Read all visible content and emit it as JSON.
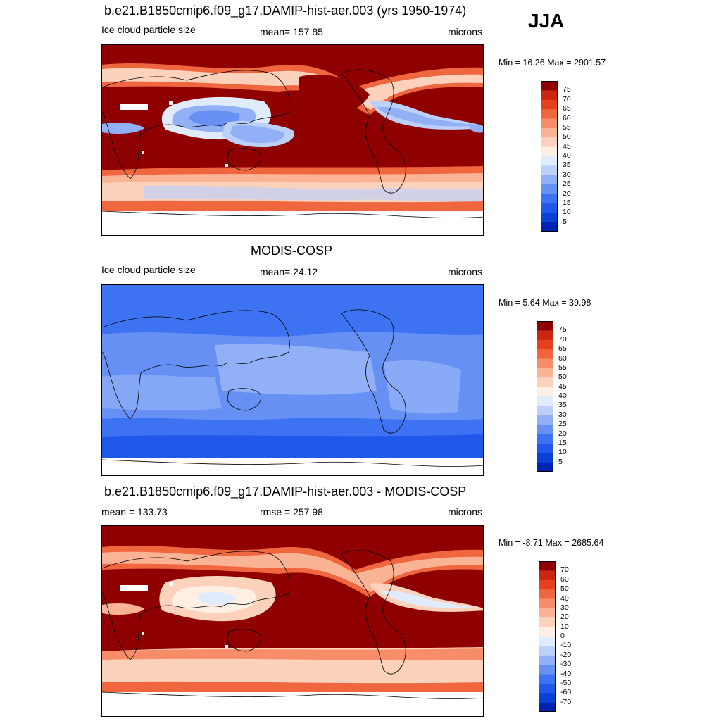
{
  "season": "JJA",
  "panels": [
    {
      "title": "b.e21.B1850cmip6.f09_g17.DAMIP-hist-aer.003 (yrs 1950-1974)",
      "left_label": "Ice cloud particle size",
      "center_label": "mean= 157.85",
      "units": "microns",
      "minmax": "Min =  16.26 Max = 2901.57",
      "colorbar": [
        "75",
        "70",
        "65",
        "60",
        "55",
        "50",
        "45",
        "40",
        "35",
        "30",
        "25",
        "20",
        "15",
        "10",
        "5"
      ]
    },
    {
      "title": "MODIS-COSP",
      "left_label": "Ice cloud particle size",
      "center_label": "mean=  24.12",
      "units": "microns",
      "minmax": "Min =   5.64 Max =  39.98",
      "colorbar": [
        "75",
        "70",
        "65",
        "60",
        "55",
        "50",
        "45",
        "40",
        "35",
        "30",
        "25",
        "20",
        "15",
        "10",
        "5"
      ]
    },
    {
      "title": "b.e21.B1850cmip6.f09_g17.DAMIP-hist-aer.003 - MODIS-COSP",
      "left_label": "mean = 133.73",
      "center_label": "rmse = 257.98",
      "units": "microns",
      "minmax": "Min =  -8.71 Max = 2685.64",
      "colorbar": [
        "70",
        "60",
        "50",
        "40",
        "30",
        "20",
        "10",
        "0",
        "-10",
        "-20",
        "-30",
        "-40",
        "-50",
        "-60",
        "-70"
      ]
    }
  ],
  "colors": {
    "palette": [
      "#00007a",
      "#0022b0",
      "#0a3fd8",
      "#2158ec",
      "#3d73f2",
      "#6690f4",
      "#92b0f6",
      "#bdd0fa",
      "#e0ecfd",
      "#fdefe3",
      "#fcd2bd",
      "#fbb396",
      "#f78d68",
      "#f0663f",
      "#e6401f",
      "#c92612",
      "#8f0000"
    ],
    "land_line": "#000000"
  }
}
